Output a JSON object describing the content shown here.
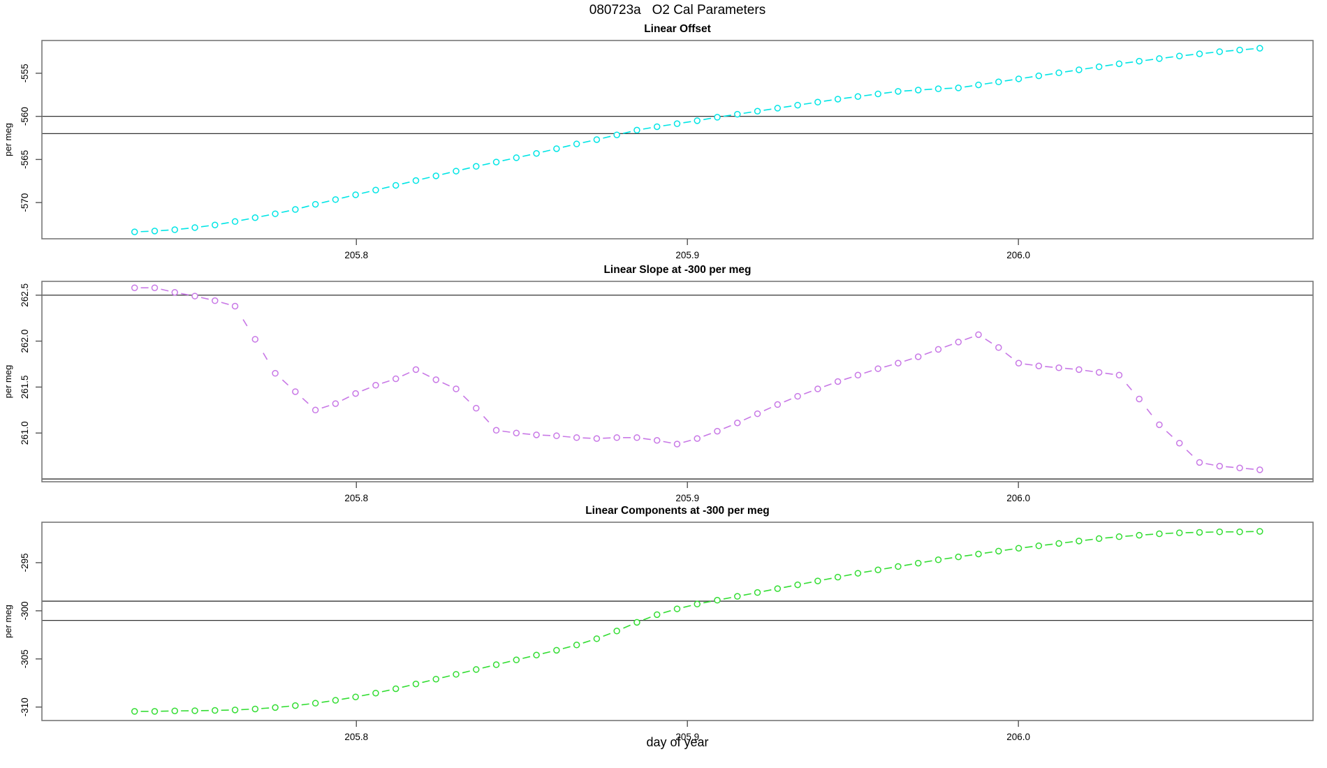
{
  "page_title": "080723a   O2 Cal Parameters",
  "chart_data": {
    "type": "line",
    "title": "080723a   O2 Cal Parameters",
    "xlabel": "day of year",
    "xlim": [
      205.705,
      206.089
    ],
    "xticks": [
      {
        "value": 205.8,
        "label": "205.8"
      },
      {
        "value": 205.9,
        "label": "205.9"
      },
      {
        "value": 206.0,
        "label": "206.0"
      }
    ],
    "x_start": 205.733,
    "x_step": 0.00607,
    "n_points": 57,
    "marker": "open-circle",
    "line_style": "dashed",
    "grid": false,
    "legend": "none",
    "axis_color": "#777777",
    "ref_line_color": "#333333",
    "panels": [
      {
        "title": "Linear Offset",
        "ylabel": "per meg",
        "color": "#00E5E5",
        "ylim": [
          -574.2,
          -551.2
        ],
        "yticks": [
          {
            "value": -555,
            "label": "-555"
          },
          {
            "value": -560,
            "label": "-560"
          },
          {
            "value": -565,
            "label": "-565"
          },
          {
            "value": -570,
            "label": "-570"
          }
        ],
        "ref_lines": [
          -560,
          -562
        ],
        "values": [
          -573.4,
          -573.3,
          -573.15,
          -572.9,
          -572.6,
          -572.2,
          -571.75,
          -571.3,
          -570.8,
          -570.2,
          -569.65,
          -569.1,
          -568.55,
          -568.0,
          -567.45,
          -566.9,
          -566.35,
          -565.8,
          -565.3,
          -564.8,
          -564.3,
          -563.75,
          -563.2,
          -562.7,
          -562.15,
          -561.6,
          -561.2,
          -560.85,
          -560.5,
          -560.1,
          -559.75,
          -559.4,
          -559.05,
          -558.7,
          -558.35,
          -558.0,
          -557.7,
          -557.4,
          -557.1,
          -556.95,
          -556.8,
          -556.7,
          -556.35,
          -556.0,
          -555.65,
          -555.3,
          -554.95,
          -554.6,
          -554.25,
          -553.9,
          -553.6,
          -553.3,
          -553.0,
          -552.75,
          -552.5,
          -552.3,
          -552.1
        ]
      },
      {
        "title": "Linear Slope at -300 per meg",
        "ylabel": "per meg",
        "color": "#C878E6",
        "ylim": [
          260.47,
          262.65
        ],
        "yticks": [
          {
            "value": 261.0,
            "label": "261.0"
          },
          {
            "value": 261.5,
            "label": "261.5"
          },
          {
            "value": 262.0,
            "label": "262.0"
          },
          {
            "value": 262.5,
            "label": "262.5"
          }
        ],
        "ref_lines": [
          262.5,
          260.5
        ],
        "values": [
          262.58,
          262.58,
          262.53,
          262.49,
          262.44,
          262.38,
          262.02,
          261.65,
          261.45,
          261.25,
          261.32,
          261.43,
          261.52,
          261.59,
          261.69,
          261.58,
          261.48,
          261.27,
          261.03,
          261.0,
          260.98,
          260.97,
          260.95,
          260.94,
          260.95,
          260.95,
          260.92,
          260.88,
          260.94,
          261.02,
          261.11,
          261.21,
          261.31,
          261.4,
          261.48,
          261.56,
          261.63,
          261.7,
          261.76,
          261.83,
          261.91,
          261.99,
          262.07,
          261.93,
          261.76,
          261.73,
          261.71,
          261.69,
          261.66,
          261.63,
          261.37,
          261.09,
          260.89,
          260.68,
          260.64,
          260.62,
          260.6
        ]
      },
      {
        "title": "Linear Components at -300 per meg",
        "ylabel": "per meg",
        "color": "#33DD33",
        "ylim": [
          -311.4,
          -290.8
        ],
        "yticks": [
          {
            "value": -295,
            "label": "-295"
          },
          {
            "value": -300,
            "label": "-300"
          },
          {
            "value": -305,
            "label": "-305"
          },
          {
            "value": -310,
            "label": "-310"
          }
        ],
        "ref_lines": [
          -299,
          -301
        ],
        "values": [
          -310.45,
          -310.45,
          -310.4,
          -310.38,
          -310.35,
          -310.3,
          -310.2,
          -310.05,
          -309.85,
          -309.6,
          -309.3,
          -308.95,
          -308.55,
          -308.1,
          -307.6,
          -307.1,
          -306.6,
          -306.1,
          -305.6,
          -305.1,
          -304.6,
          -304.1,
          -303.55,
          -302.9,
          -302.1,
          -301.2,
          -300.4,
          -299.8,
          -299.3,
          -298.9,
          -298.5,
          -298.1,
          -297.7,
          -297.3,
          -296.9,
          -296.5,
          -296.1,
          -295.75,
          -295.4,
          -295.05,
          -294.7,
          -294.4,
          -294.1,
          -293.8,
          -293.5,
          -293.25,
          -293.0,
          -292.75,
          -292.5,
          -292.3,
          -292.15,
          -292.0,
          -291.9,
          -291.85,
          -291.8,
          -291.8,
          -291.75
        ]
      }
    ]
  }
}
